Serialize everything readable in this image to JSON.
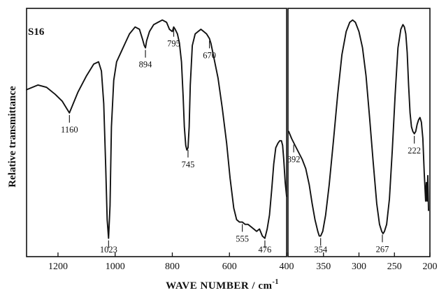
{
  "chart_data": {
    "type": "line",
    "sample_label": "S16",
    "ylabel": "Relative transmittance",
    "xlabel_main": "WAVE NUMBER / cm",
    "xlabel_sup": "-1",
    "panels": [
      {
        "xlim": [
          1310,
          400
        ],
        "x_ticks": [
          {
            "value": 1200,
            "label": "1200"
          },
          {
            "value": 1000,
            "label": "1000"
          },
          {
            "value": 800,
            "label": "800"
          },
          {
            "value": 600,
            "label": "600"
          },
          {
            "value": 400,
            "label": "400"
          }
        ],
        "peak_labels": [
          {
            "x": 1160,
            "label": "1160",
            "side": "below"
          },
          {
            "x": 1023,
            "label": "1023",
            "side": "below"
          },
          {
            "x": 894,
            "label": "894",
            "side": "below"
          },
          {
            "x": 795,
            "label": "795",
            "side": "below"
          },
          {
            "x": 745,
            "label": "745",
            "side": "below"
          },
          {
            "x": 670,
            "label": "670",
            "side": "below"
          },
          {
            "x": 555,
            "label": "555",
            "side": "below"
          },
          {
            "x": 476,
            "label": "476",
            "side": "below"
          }
        ],
        "series": [
          {
            "x": [
              1310,
              1270,
              1240,
              1210,
              1185,
              1170,
              1160,
              1150,
              1130,
              1100,
              1075,
              1058,
              1048,
              1040,
              1033,
              1028,
              1023,
              1018,
              1013,
              1005,
              995,
              980,
              965,
              950,
              930,
              915,
              905,
              898,
              894,
              890,
              880,
              865,
              850,
              835,
              820,
              810,
              800,
              795,
              790,
              782,
              775,
              768,
              762,
              758,
              753,
              749,
              745,
              741,
              737,
              730,
              720,
              710,
              700,
              690,
              680,
              675,
              670,
              665,
              655,
              640,
              625,
              610,
              598,
              585,
              575,
              565,
              555,
              545,
              535,
              525,
              515,
              505,
              495,
              485,
              476,
              468,
              460,
              452,
              445,
              438,
              430,
              424,
              418,
              414,
              410,
              405,
              400
            ],
            "y": [
              0.68,
              0.7,
              0.69,
              0.66,
              0.63,
              0.6,
              0.58,
              0.61,
              0.67,
              0.74,
              0.79,
              0.8,
              0.76,
              0.62,
              0.35,
              0.12,
              0.04,
              0.18,
              0.52,
              0.72,
              0.8,
              0.84,
              0.88,
              0.92,
              0.95,
              0.94,
              0.9,
              0.87,
              0.86,
              0.89,
              0.93,
              0.96,
              0.97,
              0.98,
              0.97,
              0.94,
              0.93,
              0.95,
              0.94,
              0.92,
              0.88,
              0.8,
              0.65,
              0.52,
              0.44,
              0.42,
              0.43,
              0.52,
              0.7,
              0.87,
              0.92,
              0.93,
              0.94,
              0.93,
              0.92,
              0.91,
              0.9,
              0.88,
              0.82,
              0.73,
              0.6,
              0.45,
              0.3,
              0.17,
              0.12,
              0.11,
              0.11,
              0.1,
              0.1,
              0.09,
              0.08,
              0.07,
              0.08,
              0.05,
              0.04,
              0.08,
              0.14,
              0.25,
              0.36,
              0.43,
              0.45,
              0.46,
              0.46,
              0.44,
              0.38,
              0.28,
              0.22
            ]
          }
        ]
      },
      {
        "xlim": [
          400,
          200
        ],
        "x_ticks": [
          {
            "value": 400,
            "label": "400"
          },
          {
            "value": 350,
            "label": "350"
          },
          {
            "value": 300,
            "label": "300"
          },
          {
            "value": 250,
            "label": "250"
          },
          {
            "value": 200,
            "label": "200"
          }
        ],
        "peak_labels": [
          {
            "x": 392,
            "label": "392",
            "side": "below"
          },
          {
            "x": 354,
            "label": "354",
            "side": "below"
          },
          {
            "x": 267,
            "label": "267",
            "side": "below"
          },
          {
            "x": 222,
            "label": "222",
            "side": "below"
          }
        ],
        "series": [
          {
            "x": [
              399,
              395,
              390,
              385,
              380,
              375,
              370,
              366,
              362,
              358,
              356,
              354,
              351,
              347,
              342,
              336,
              330,
              324,
              318,
              313,
              309,
              305,
              300,
              295,
              290,
              285,
              280,
              275,
              271,
              268,
              266,
              264,
              261,
              257,
              253,
              249,
              245,
              241,
              238,
              236,
              234,
              232,
              230,
              228,
              226,
              224,
              222,
              220,
              218,
              216,
              214,
              212,
              210,
              208,
              206,
              205,
              204,
              203,
              202
            ],
            "y": [
              0.5,
              0.47,
              0.44,
              0.41,
              0.38,
              0.34,
              0.27,
              0.19,
              0.12,
              0.07,
              0.05,
              0.05,
              0.07,
              0.14,
              0.27,
              0.46,
              0.66,
              0.83,
              0.93,
              0.97,
              0.98,
              0.97,
              0.93,
              0.86,
              0.74,
              0.56,
              0.37,
              0.19,
              0.1,
              0.07,
              0.06,
              0.07,
              0.1,
              0.21,
              0.42,
              0.66,
              0.86,
              0.94,
              0.96,
              0.95,
              0.92,
              0.84,
              0.7,
              0.58,
              0.52,
              0.5,
              0.49,
              0.5,
              0.53,
              0.55,
              0.56,
              0.54,
              0.47,
              0.32,
              0.2,
              0.28,
              0.2,
              0.31,
              0.16
            ]
          }
        ]
      }
    ]
  }
}
